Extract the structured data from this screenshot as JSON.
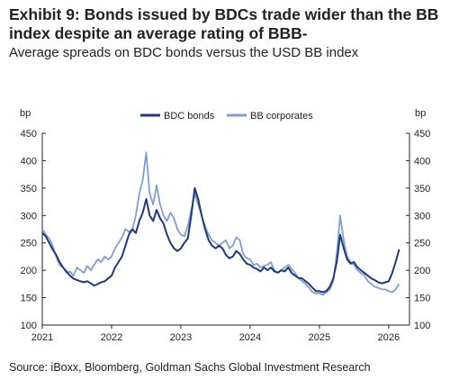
{
  "title": "Exhibit 9: Bonds issued by BDCs trade wider than the BB index despite an average rating of BBB-",
  "subtitle": "Average spreads on BDC bonds versus the USD BB index",
  "source": "Source: iBoxx, Bloomberg, Goldman Sachs Global Investment Research",
  "chart_data": {
    "type": "line",
    "title": "Exhibit 9: Bonds issued by BDCs trade wider than the BB index despite an average rating of BBB-",
    "subtitle": "Average spreads on BDC bonds versus the USD BB index",
    "ylabel_left": "bp",
    "ylabel_right": "bp",
    "xlim": [
      2021,
      2026.3
    ],
    "ylim": [
      100,
      450
    ],
    "yticks": [
      100,
      150,
      200,
      250,
      300,
      350,
      400,
      450
    ],
    "xticks": [
      "2021",
      "2022",
      "2023",
      "2024",
      "2025",
      "2026"
    ],
    "grid": false,
    "legend_position": "top",
    "series": [
      {
        "name": "BDC bonds",
        "color": "#1f3a7a",
        "x": [
          2021.0,
          2021.05,
          2021.1,
          2021.15,
          2021.2,
          2021.25,
          2021.3,
          2021.35,
          2021.4,
          2021.45,
          2021.5,
          2021.55,
          2021.6,
          2021.65,
          2021.7,
          2021.75,
          2021.8,
          2021.85,
          2021.9,
          2021.95,
          2022.0,
          2022.05,
          2022.1,
          2022.15,
          2022.2,
          2022.25,
          2022.3,
          2022.35,
          2022.4,
          2022.45,
          2022.5,
          2022.55,
          2022.6,
          2022.65,
          2022.7,
          2022.75,
          2022.8,
          2022.85,
          2022.9,
          2022.95,
          2023.0,
          2023.05,
          2023.1,
          2023.15,
          2023.2,
          2023.25,
          2023.3,
          2023.35,
          2023.4,
          2023.45,
          2023.5,
          2023.55,
          2023.6,
          2023.65,
          2023.7,
          2023.75,
          2023.8,
          2023.85,
          2023.9,
          2023.95,
          2024.0,
          2024.05,
          2024.1,
          2024.15,
          2024.2,
          2024.25,
          2024.3,
          2024.35,
          2024.4,
          2024.45,
          2024.5,
          2024.55,
          2024.6,
          2024.65,
          2024.7,
          2024.75,
          2024.8,
          2024.85,
          2024.9,
          2024.95,
          2025.0,
          2025.05,
          2025.1,
          2025.15,
          2025.2,
          2025.25,
          2025.3,
          2025.35,
          2025.4,
          2025.45,
          2025.5,
          2025.55,
          2025.6,
          2025.65,
          2025.7,
          2025.75,
          2025.8,
          2025.85,
          2025.9,
          2025.95,
          2026.0,
          2026.05,
          2026.1,
          2026.15
        ],
        "values": [
          268,
          262,
          250,
          238,
          228,
          215,
          205,
          198,
          190,
          185,
          182,
          180,
          178,
          180,
          176,
          172,
          175,
          178,
          180,
          185,
          190,
          205,
          215,
          225,
          245,
          265,
          275,
          268,
          290,
          305,
          330,
          300,
          290,
          310,
          295,
          285,
          265,
          250,
          240,
          235,
          240,
          250,
          258,
          300,
          350,
          330,
          300,
          275,
          255,
          245,
          240,
          245,
          240,
          228,
          222,
          225,
          235,
          230,
          220,
          212,
          210,
          205,
          202,
          198,
          205,
          200,
          205,
          198,
          196,
          200,
          198,
          205,
          195,
          190,
          186,
          185,
          180,
          175,
          168,
          162,
          162,
          160,
          162,
          170,
          185,
          215,
          265,
          240,
          220,
          212,
          215,
          205,
          200,
          195,
          190,
          185,
          182,
          178,
          176,
          178,
          180,
          195,
          215,
          238
        ]
      },
      {
        "name": "BB corporates",
        "color": "#7f9fd4",
        "x": [
          2021.0,
          2021.05,
          2021.1,
          2021.15,
          2021.2,
          2021.25,
          2021.3,
          2021.35,
          2021.4,
          2021.45,
          2021.5,
          2021.55,
          2021.6,
          2021.65,
          2021.7,
          2021.75,
          2021.8,
          2021.85,
          2021.9,
          2021.95,
          2022.0,
          2022.05,
          2022.1,
          2022.15,
          2022.2,
          2022.25,
          2022.3,
          2022.35,
          2022.4,
          2022.45,
          2022.5,
          2022.55,
          2022.6,
          2022.65,
          2022.7,
          2022.75,
          2022.8,
          2022.85,
          2022.9,
          2022.95,
          2023.0,
          2023.05,
          2023.1,
          2023.15,
          2023.2,
          2023.25,
          2023.3,
          2023.35,
          2023.4,
          2023.45,
          2023.5,
          2023.55,
          2023.6,
          2023.65,
          2023.7,
          2023.75,
          2023.8,
          2023.85,
          2023.9,
          2023.95,
          2024.0,
          2024.05,
          2024.1,
          2024.15,
          2024.2,
          2024.25,
          2024.3,
          2024.35,
          2024.4,
          2024.45,
          2024.5,
          2024.55,
          2024.6,
          2024.65,
          2024.7,
          2024.75,
          2024.8,
          2024.85,
          2024.9,
          2024.95,
          2025.0,
          2025.05,
          2025.1,
          2025.15,
          2025.2,
          2025.25,
          2025.3,
          2025.35,
          2025.4,
          2025.45,
          2025.5,
          2025.55,
          2025.6,
          2025.65,
          2025.7,
          2025.75,
          2025.8,
          2025.85,
          2025.9,
          2025.95,
          2026.0,
          2026.05,
          2026.1,
          2026.15
        ],
        "values": [
          275,
          265,
          258,
          245,
          225,
          210,
          205,
          195,
          198,
          190,
          205,
          200,
          195,
          208,
          200,
          210,
          220,
          215,
          225,
          220,
          225,
          240,
          250,
          260,
          275,
          270,
          275,
          300,
          340,
          365,
          415,
          340,
          320,
          355,
          320,
          300,
          290,
          305,
          295,
          275,
          265,
          262,
          280,
          310,
          340,
          320,
          300,
          280,
          265,
          255,
          250,
          245,
          250,
          255,
          240,
          245,
          260,
          255,
          230,
          222,
          220,
          210,
          212,
          205,
          208,
          210,
          215,
          200,
          195,
          200,
          205,
          210,
          202,
          195,
          185,
          180,
          175,
          168,
          160,
          158,
          158,
          155,
          160,
          165,
          180,
          230,
          300,
          255,
          225,
          215,
          210,
          200,
          195,
          190,
          180,
          175,
          170,
          168,
          165,
          165,
          162,
          160,
          165,
          175
        ]
      }
    ]
  }
}
